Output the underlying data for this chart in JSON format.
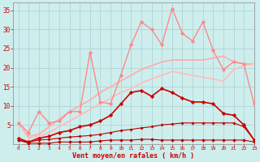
{
  "title": "",
  "xlabel": "Vent moyen/en rafales ( km/h )",
  "background_color": "#ceeeed",
  "grid_color": "#aed4d4",
  "xlim": [
    -0.5,
    23
  ],
  "ylim": [
    0,
    37
  ],
  "xticks": [
    0,
    1,
    2,
    3,
    4,
    5,
    6,
    7,
    8,
    9,
    10,
    11,
    12,
    13,
    14,
    15,
    16,
    17,
    18,
    19,
    20,
    21,
    22,
    23
  ],
  "yticks": [
    5,
    10,
    15,
    20,
    25,
    30,
    35
  ],
  "series": [
    {
      "x": [
        0,
        1,
        2,
        3,
        4,
        5,
        6,
        7,
        8,
        9,
        10,
        11,
        12,
        13,
        14,
        15,
        16,
        17,
        18,
        19,
        20,
        21,
        22,
        23
      ],
      "y": [
        1.0,
        0.2,
        0.2,
        0.2,
        0.5,
        0.5,
        0.5,
        0.5,
        0.8,
        1.0,
        1.0,
        1.0,
        1.2,
        1.2,
        1.0,
        1.0,
        1.0,
        1.0,
        1.0,
        1.0,
        1.0,
        1.0,
        1.0,
        0.5
      ],
      "color": "#bb0000",
      "lw": 0.8,
      "marker": "D",
      "ms": 1.8
    },
    {
      "x": [
        0,
        1,
        2,
        3,
        4,
        5,
        6,
        7,
        8,
        9,
        10,
        11,
        12,
        13,
        14,
        15,
        16,
        17,
        18,
        19,
        20,
        21,
        22,
        23
      ],
      "y": [
        1.0,
        0.5,
        1.0,
        1.2,
        1.5,
        1.8,
        2.0,
        2.2,
        2.5,
        3.0,
        3.5,
        3.8,
        4.2,
        4.5,
        5.0,
        5.2,
        5.5,
        5.5,
        5.5,
        5.5,
        5.5,
        5.5,
        4.5,
        1.0
      ],
      "color": "#bb0000",
      "lw": 0.8,
      "marker": "P",
      "ms": 2.0
    },
    {
      "x": [
        0,
        1,
        2,
        3,
        4,
        5,
        6,
        7,
        8,
        9,
        10,
        11,
        12,
        13,
        14,
        15,
        16,
        17,
        18,
        19,
        20,
        21,
        22,
        23
      ],
      "y": [
        1.5,
        0.5,
        1.5,
        2.0,
        3.0,
        3.5,
        4.5,
        5.0,
        6.0,
        7.5,
        10.5,
        13.5,
        14.0,
        12.5,
        14.5,
        13.5,
        12.0,
        11.0,
        11.0,
        10.5,
        8.0,
        7.5,
        5.0,
        1.0
      ],
      "color": "#cc0000",
      "lw": 1.2,
      "marker": "D",
      "ms": 2.2
    },
    {
      "x": [
        0,
        1,
        2,
        3,
        4,
        5,
        6,
        7,
        8,
        9,
        10,
        11,
        12,
        13,
        14,
        15,
        16,
        17,
        18,
        19,
        20,
        21,
        22,
        23
      ],
      "y": [
        5.5,
        3.0,
        8.5,
        5.5,
        6.0,
        8.5,
        8.5,
        24.0,
        11.0,
        10.5,
        18.0,
        26.0,
        32.0,
        30.0,
        26.0,
        35.5,
        29.0,
        27.0,
        32.0,
        24.5,
        19.5,
        21.5,
        21.0,
        10.5
      ],
      "color": "#ff8888",
      "lw": 1.0,
      "marker": "D",
      "ms": 2.2
    },
    {
      "x": [
        0,
        1,
        2,
        3,
        4,
        5,
        6,
        7,
        8,
        9,
        10,
        11,
        12,
        13,
        14,
        15,
        16,
        17,
        18,
        19,
        20,
        21,
        22,
        23
      ],
      "y": [
        5.5,
        2.0,
        2.5,
        4.5,
        6.5,
        8.5,
        10.0,
        11.5,
        13.5,
        15.0,
        16.5,
        18.0,
        19.5,
        20.5,
        21.5,
        22.0,
        22.0,
        22.0,
        22.0,
        22.5,
        23.0,
        21.5,
        21.0,
        21.0
      ],
      "color": "#ffaaaa",
      "lw": 1.2,
      "marker": null,
      "ms": 0
    },
    {
      "x": [
        0,
        1,
        2,
        3,
        4,
        5,
        6,
        7,
        8,
        9,
        10,
        11,
        12,
        13,
        14,
        15,
        16,
        17,
        18,
        19,
        20,
        21,
        22,
        23
      ],
      "y": [
        5.5,
        1.5,
        2.0,
        3.0,
        4.5,
        6.0,
        7.5,
        9.0,
        10.5,
        12.0,
        13.5,
        14.5,
        16.0,
        17.0,
        18.0,
        19.0,
        18.5,
        18.0,
        17.5,
        17.0,
        16.5,
        19.5,
        20.5,
        21.0
      ],
      "color": "#ffbbbb",
      "lw": 1.2,
      "marker": null,
      "ms": 0
    }
  ]
}
